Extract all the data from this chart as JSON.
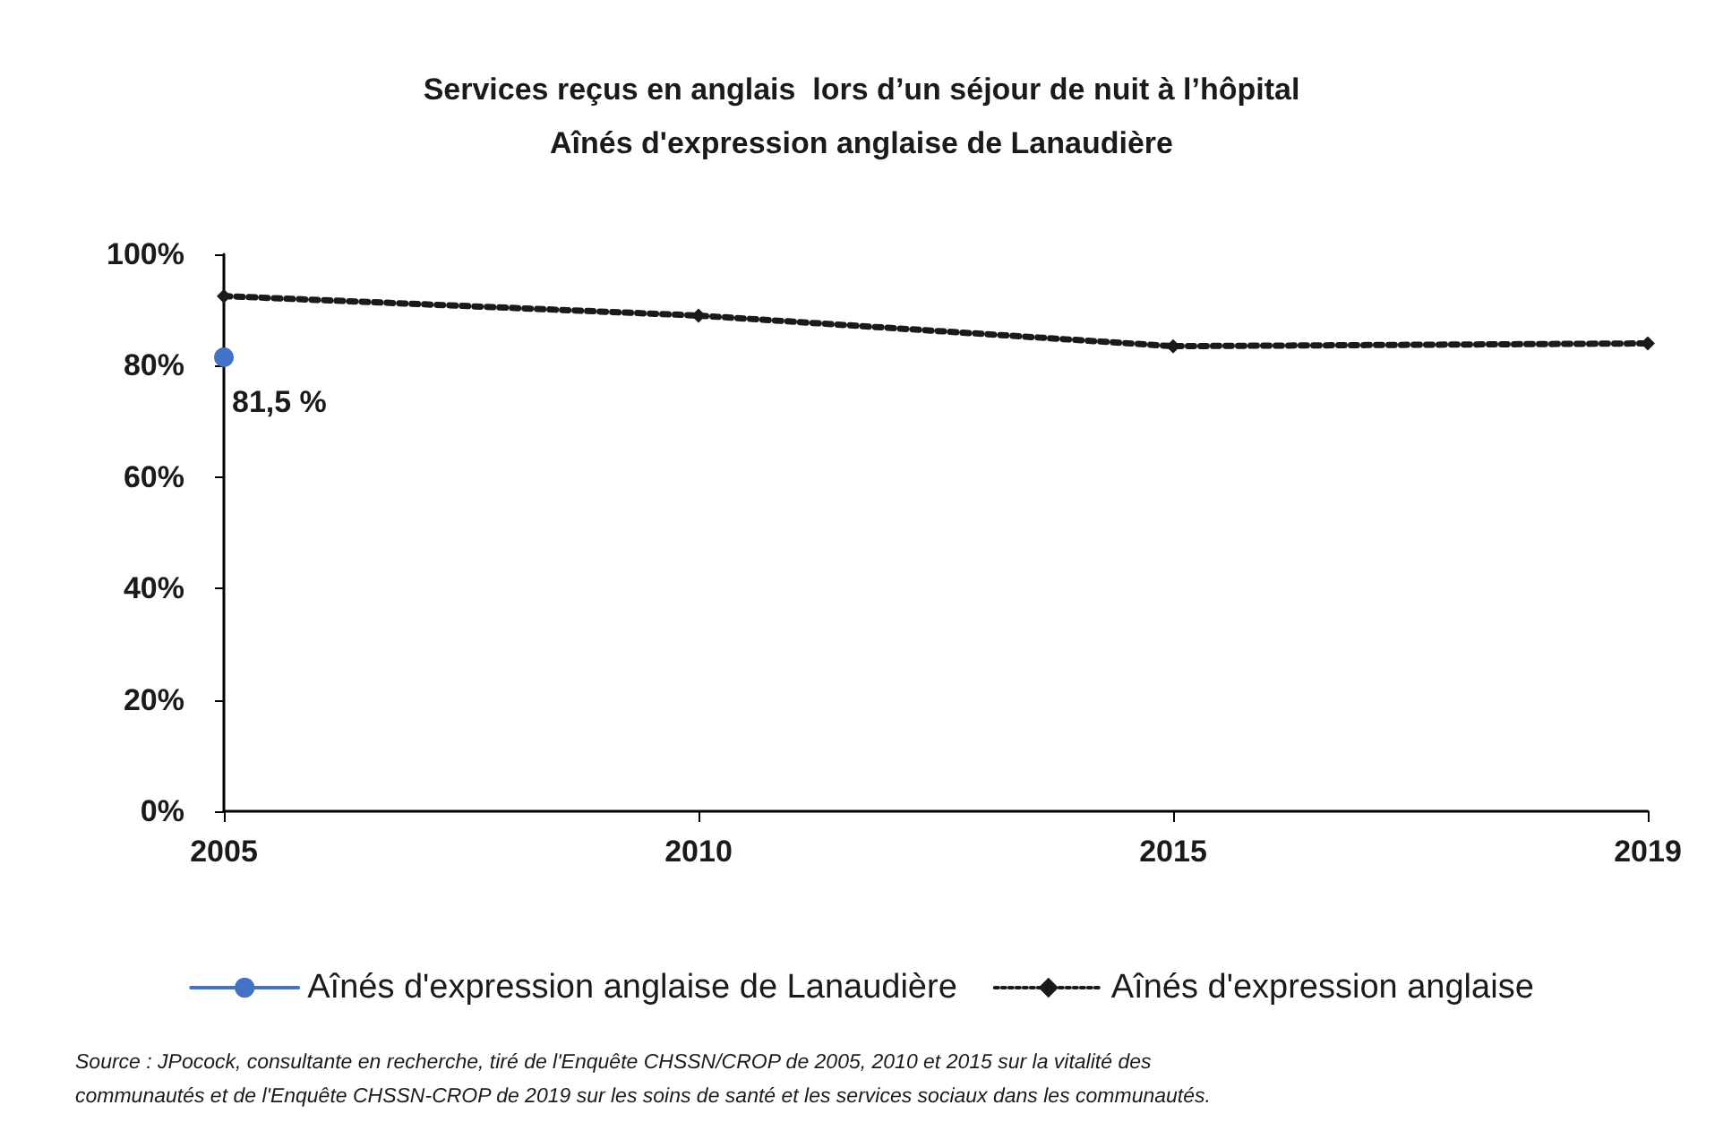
{
  "chart_data": {
    "type": "line",
    "title": "Services reçus en anglais  lors d’un séjour de nuit à l’hôpital\nAînés d'expression anglaise de Lanaudière",
    "categories": [
      "2005",
      "2010",
      "2015",
      "2019"
    ],
    "series": [
      {
        "name": "Aînés d'expression anglaise de Lanaudière",
        "color": "#4472c4",
        "values": [
          81.5,
          null,
          null,
          null
        ],
        "value_labels": [
          "81,5 %",
          null,
          null,
          null
        ],
        "marker": "circle",
        "line_style": "solid"
      },
      {
        "name": "Aînés d'expression anglaise",
        "color": "#1a1a1a",
        "values": [
          92.5,
          89,
          83.5,
          84
        ],
        "marker": "diamond",
        "line_style": "dotted"
      }
    ],
    "ylim": [
      0,
      100
    ],
    "yticks": [
      {
        "value": 0,
        "label": "0%"
      },
      {
        "value": 20,
        "label": "20%"
      },
      {
        "value": 40,
        "label": "40%"
      },
      {
        "value": 60,
        "label": "60%"
      },
      {
        "value": 80,
        "label": "80%"
      },
      {
        "value": 100,
        "label": "100%"
      }
    ],
    "grid": false,
    "legend": "bottom",
    "annotations": [
      "Source : JPocock, consultante en recherche, tiré de l'Enquête CHSSN/CROP de 2005, 2010 et 2015 sur la vitalité des\ncommunautés et de l'Enquête CHSSN-CROP de 2019 sur les soins de santé et les services sociaux dans les communautés."
    ]
  }
}
